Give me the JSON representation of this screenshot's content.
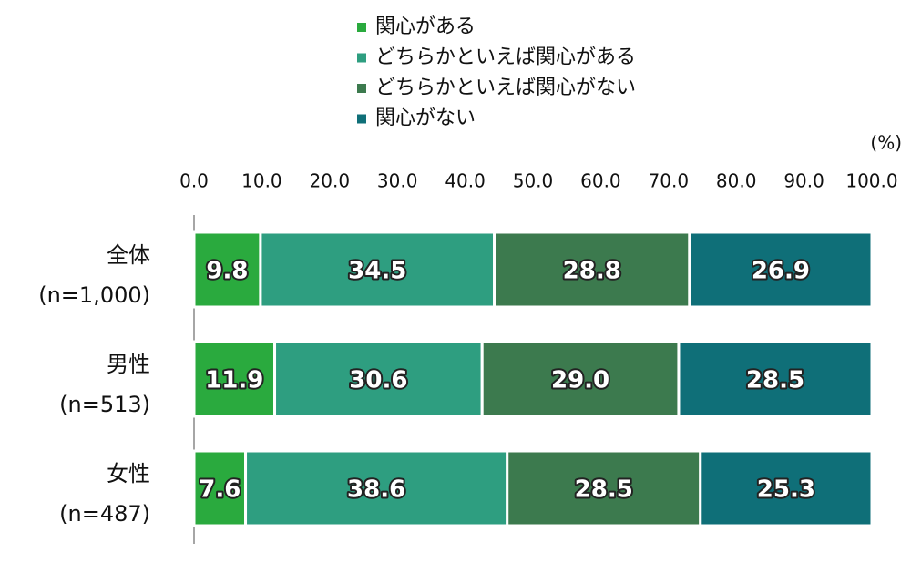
{
  "chart_data": {
    "type": "stacked-barh",
    "unit_label": "(%)",
    "categories": [
      "全体",
      "男性",
      "女性"
    ],
    "sample_sizes": [
      "(n=1,000)",
      "(n=513)",
      "(n=487)"
    ],
    "xlim": [
      0,
      100
    ],
    "xticks": [
      {
        "value": 0,
        "label": "0.0"
      },
      {
        "value": 10,
        "label": "10.0"
      },
      {
        "value": 20,
        "label": "20.0"
      },
      {
        "value": 30,
        "label": "30.0"
      },
      {
        "value": 40,
        "label": "40.0"
      },
      {
        "value": 50,
        "label": "50.0"
      },
      {
        "value": 60,
        "label": "60.0"
      },
      {
        "value": 70,
        "label": "70.0"
      },
      {
        "value": 80,
        "label": "80.0"
      },
      {
        "value": 90,
        "label": "90.0"
      },
      {
        "value": 100,
        "label": "100.0"
      }
    ],
    "series": [
      {
        "name": "関心がある",
        "color": "#2aaa3e",
        "values": [
          9.8,
          11.9,
          7.6
        ],
        "value_labels": [
          "9.8",
          "11.9",
          "7.6"
        ]
      },
      {
        "name": "どちらかといえば関心がある",
        "color": "#2e9e80",
        "values": [
          34.5,
          30.6,
          38.6
        ],
        "value_labels": [
          "34.5",
          "30.6",
          "38.6"
        ]
      },
      {
        "name": "どちらかといえば関心がない",
        "color": "#3c7a4e",
        "values": [
          28.8,
          29.0,
          28.5
        ],
        "value_labels": [
          "28.8",
          "29.0",
          "28.5"
        ]
      },
      {
        "name": "関心がない",
        "color": "#0f6f78",
        "values": [
          26.9,
          28.5,
          25.3
        ],
        "value_labels": [
          "26.9",
          "28.5",
          "25.3"
        ]
      }
    ]
  }
}
